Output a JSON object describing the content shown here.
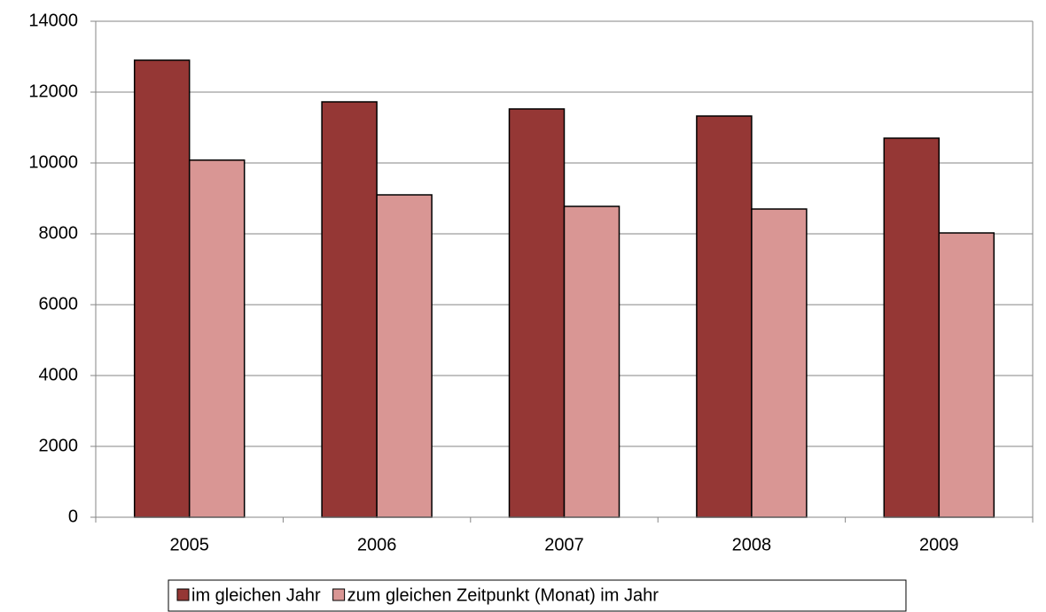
{
  "chart_data": {
    "type": "bar",
    "categories": [
      "2005",
      "2006",
      "2007",
      "2008",
      "2009"
    ],
    "series": [
      {
        "name": "im gleichen Jahr",
        "color": "#953735",
        "values": [
          12900,
          11725,
          11525,
          11325,
          10700
        ]
      },
      {
        "name": "zum gleichen Zeitpunkt (Monat) im Jahr",
        "color": "#d99694",
        "values": [
          10080,
          9100,
          8775,
          8700,
          8025
        ]
      }
    ],
    "ylim": [
      0,
      14000
    ],
    "yticks": [
      0,
      2000,
      4000,
      6000,
      8000,
      10000,
      12000,
      14000
    ],
    "grid": true
  }
}
